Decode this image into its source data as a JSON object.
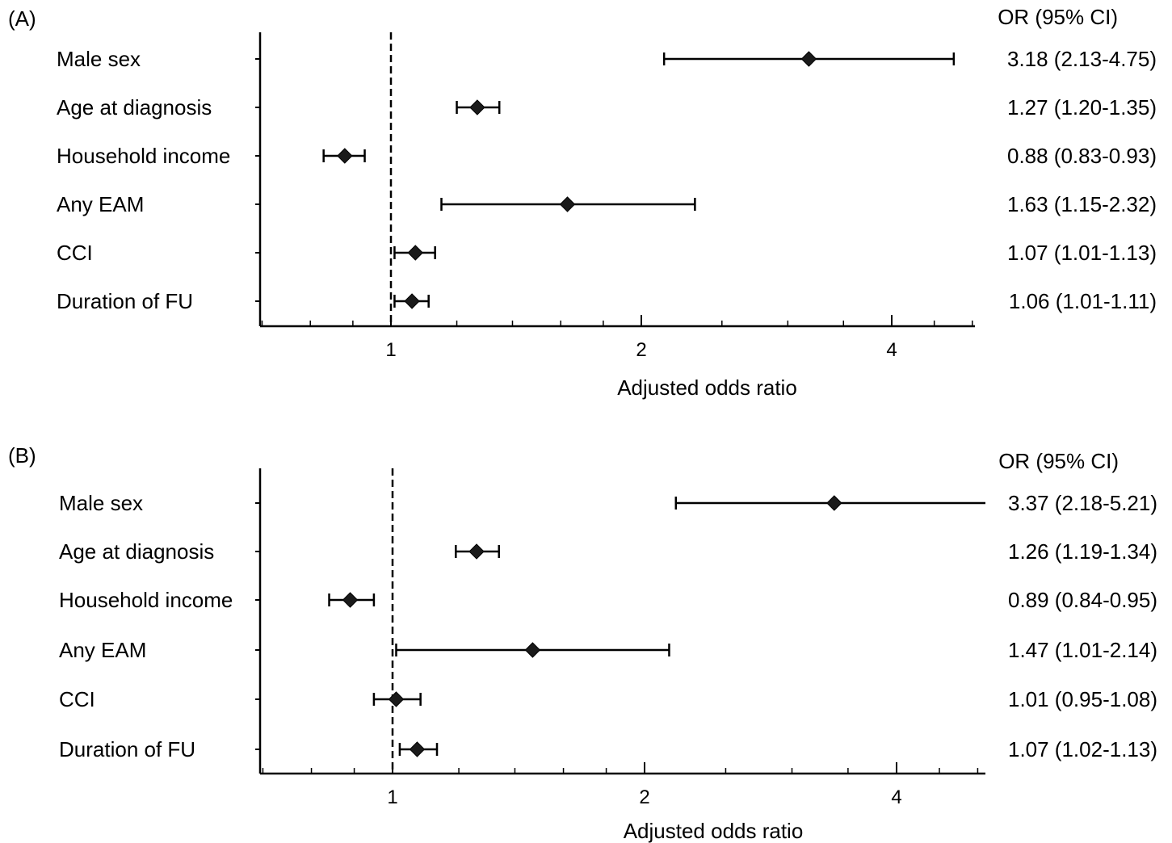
{
  "chart_data": [
    {
      "panel_label": "(A)",
      "type": "forest",
      "xlabel": "Adjusted odds ratio",
      "x_scale": "log2",
      "x_ticks": [
        1,
        2,
        4
      ],
      "x_tick_labels": [
        "1",
        "2",
        "4"
      ],
      "reference_line": 1,
      "or_header": "OR (95% CI)",
      "rows": [
        {
          "label": "Male sex",
          "or": 3.18,
          "low": 2.13,
          "high": 4.75,
          "text": "3.18 (2.13-4.75)"
        },
        {
          "label": "Age at diagnosis",
          "or": 1.27,
          "low": 1.2,
          "high": 1.35,
          "text": "1.27 (1.20-1.35)"
        },
        {
          "label": "Household income",
          "or": 0.88,
          "low": 0.83,
          "high": 0.93,
          "text": "0.88 (0.83-0.93)"
        },
        {
          "label": "Any EAM",
          "or": 1.63,
          "low": 1.15,
          "high": 2.32,
          "text": "1.63 (1.15-2.32)"
        },
        {
          "label": "CCI",
          "or": 1.07,
          "low": 1.01,
          "high": 1.13,
          "text": "1.07 (1.01-1.13)"
        },
        {
          "label": "Duration of FU",
          "or": 1.06,
          "low": 1.01,
          "high": 1.11,
          "text": "1.06 (1.01-1.11)"
        }
      ]
    },
    {
      "panel_label": "(B)",
      "type": "forest",
      "xlabel": "Adjusted odds ratio",
      "x_scale": "log2",
      "x_ticks": [
        1,
        2,
        4
      ],
      "x_tick_labels": [
        "1",
        "2",
        "4"
      ],
      "reference_line": 1,
      "or_header": "OR (95% CI)",
      "rows": [
        {
          "label": "Male sex",
          "or": 3.37,
          "low": 2.18,
          "high": 5.21,
          "text": "3.37 (2.18-5.21)"
        },
        {
          "label": "Age at diagnosis",
          "or": 1.26,
          "low": 1.19,
          "high": 1.34,
          "text": "1.26 (1.19-1.34)"
        },
        {
          "label": "Household income",
          "or": 0.89,
          "low": 0.84,
          "high": 0.95,
          "text": "0.89 (0.84-0.95)"
        },
        {
          "label": "Any EAM",
          "or": 1.47,
          "low": 1.01,
          "high": 2.14,
          "text": "1.47 (1.01-2.14)"
        },
        {
          "label": "CCI",
          "or": 1.01,
          "low": 0.95,
          "high": 1.08,
          "text": "1.01 (0.95-1.08)"
        },
        {
          "label": "Duration of FU",
          "or": 1.07,
          "low": 1.02,
          "high": 1.13,
          "text": "1.07 (1.02-1.13)"
        }
      ]
    }
  ]
}
